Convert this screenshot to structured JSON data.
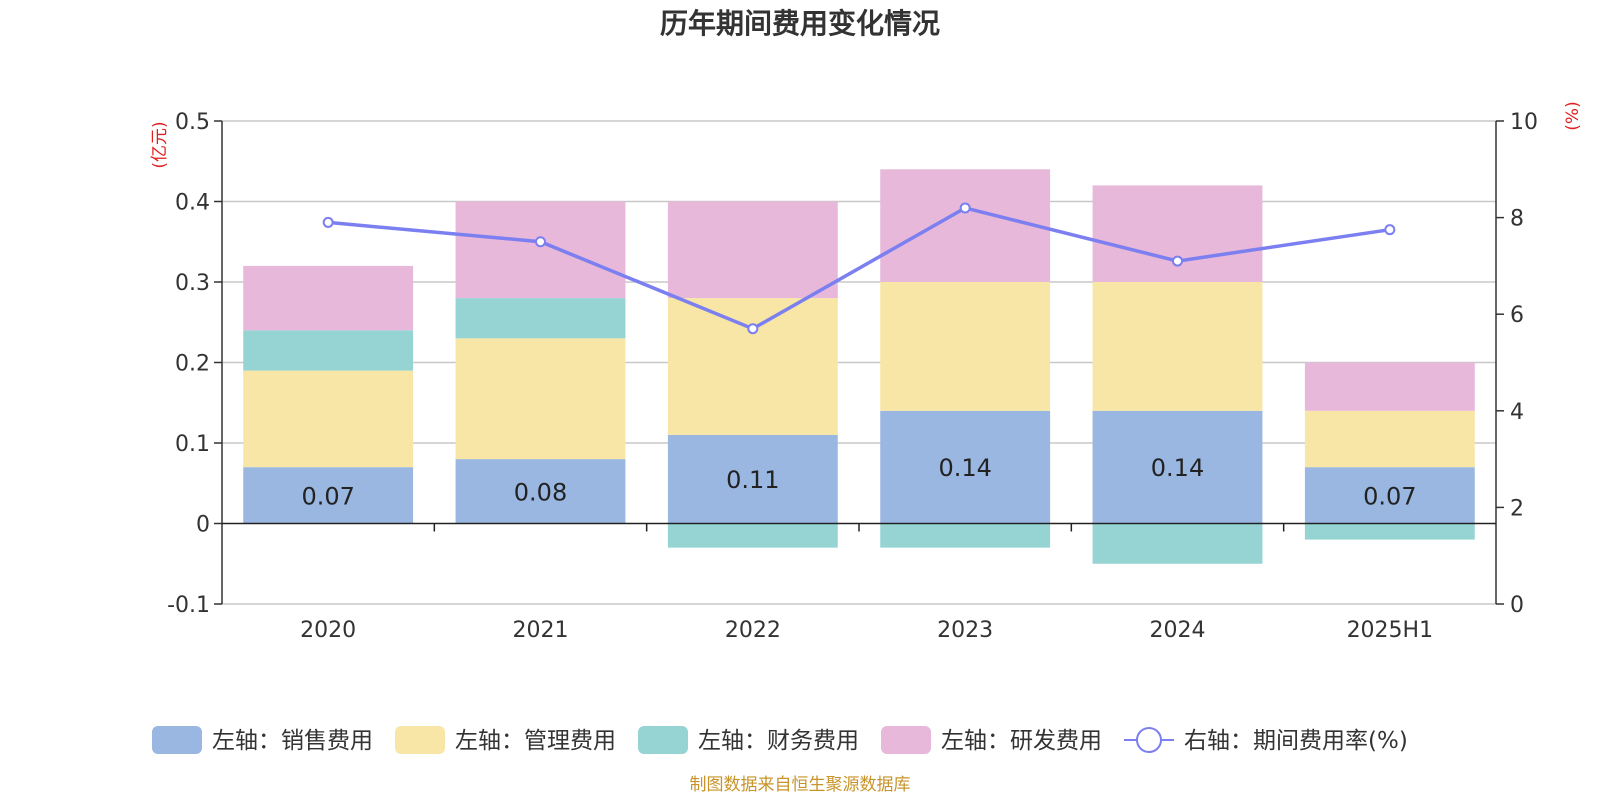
{
  "chart_data": {
    "type": "bar",
    "title": "历年期间费用变化情况",
    "categories": [
      "2020",
      "2021",
      "2022",
      "2023",
      "2024",
      "2025H1"
    ],
    "left_axis": {
      "unit": "(亿元)",
      "ylim": [
        -0.1,
        0.5
      ],
      "ticks": [
        "-0.1",
        "0",
        "0.1",
        "0.2",
        "0.3",
        "0.4",
        "0.5"
      ]
    },
    "right_axis": {
      "unit": "(%)",
      "ylim": [
        0,
        10
      ],
      "ticks": [
        "0",
        "2",
        "4",
        "6",
        "8",
        "10"
      ]
    },
    "grid": true,
    "legend_position": "bottom",
    "series": [
      {
        "name": "左轴：销售费用",
        "type": "bar",
        "axis": "left",
        "color": "#9ab7e2",
        "values": [
          0.07,
          0.08,
          0.11,
          0.14,
          0.14,
          0.07
        ],
        "labels": [
          "0.07",
          "0.08",
          "0.11",
          "0.14",
          "0.14",
          "0.07"
        ]
      },
      {
        "name": "左轴：管理费用",
        "type": "bar",
        "axis": "left",
        "color": "#f7e6a6",
        "values": [
          0.12,
          0.15,
          0.17,
          0.16,
          0.16,
          0.07
        ]
      },
      {
        "name": "左轴：财务费用",
        "type": "bar",
        "axis": "left",
        "color": "#96d4d4",
        "values": [
          0.05,
          0.05,
          -0.03,
          -0.03,
          -0.05,
          -0.02
        ]
      },
      {
        "name": "左轴：研发费用",
        "type": "bar",
        "axis": "left",
        "color": "#e7b8d9",
        "values": [
          0.08,
          0.12,
          0.12,
          0.14,
          0.12,
          0.06
        ]
      },
      {
        "name": "右轴：期间费用率(%)",
        "type": "line",
        "axis": "right",
        "color": "#7b7ff0",
        "values": [
          7.9,
          7.5,
          5.7,
          8.2,
          7.1,
          7.75
        ]
      }
    ],
    "source": "制图数据来自恒生聚源数据库"
  }
}
